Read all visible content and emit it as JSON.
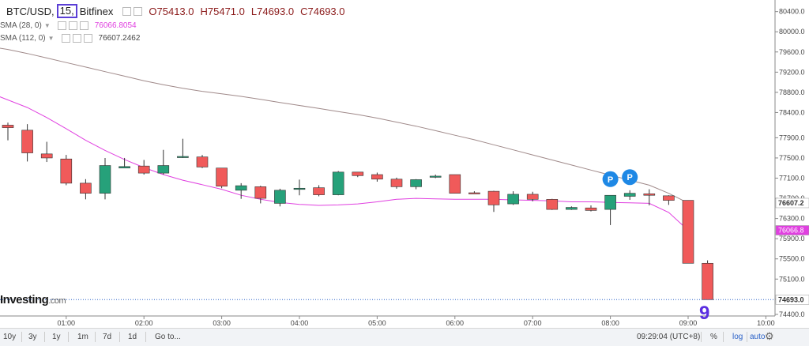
{
  "header": {
    "symbol": "BTC/USD,",
    "interval": "15,",
    "exchange": "Bitfinex",
    "open": "O75413.0",
    "high": "H75471.0",
    "low": "L74693.0",
    "close": "C74693.0"
  },
  "sma": [
    {
      "label": "SMA (28, 0)",
      "value": "76066.8054",
      "color": "#e040e0"
    },
    {
      "label": "SMA (112, 0)",
      "value": "76607.2462",
      "color": "#a08a8a"
    }
  ],
  "logo": {
    "main": "Investing",
    "suffix": ".com"
  },
  "annotation": "9",
  "toolbar": {
    "ranges": [
      "10y",
      "3y",
      "1y",
      "1m",
      "7d",
      "1d"
    ],
    "goto": "Go to...",
    "time": "09:29:04 (UTC+8)",
    "percent": "%",
    "log": "log",
    "auto": "auto"
  },
  "colors": {
    "up": "#26a17a",
    "down": "#f05a5a",
    "sma_short": "#e040e0",
    "sma_long": "#a08a8a",
    "price_line": "#2d63c8",
    "marker": "#1e88e5"
  },
  "chart_data": {
    "type": "candlestick",
    "x_ticks": [
      "01:00",
      "02:00",
      "03:00",
      "04:00",
      "05:00",
      "06:00",
      "07:00",
      "08:00",
      "09:00",
      "10:00"
    ],
    "y_ticks": [
      "80400.0",
      "80000.0",
      "79600.0",
      "79200.0",
      "78800.0",
      "78400.0",
      "77900.0",
      "77500.0",
      "77100.0",
      "76700.0",
      "76300.0",
      "75900.0",
      "75500.0",
      "75100.0",
      "74700.0",
      "74400.0"
    ],
    "ylim": [
      74400,
      80520
    ],
    "candles": [
      {
        "t": "00:00",
        "o": 78150,
        "h": 78200,
        "l": 77850,
        "c": 78100
      },
      {
        "t": "00:15",
        "o": 78050,
        "h": 78170,
        "l": 77430,
        "c": 77600
      },
      {
        "t": "00:30",
        "o": 77580,
        "h": 77820,
        "l": 77420,
        "c": 77500
      },
      {
        "t": "00:45",
        "o": 77480,
        "h": 77560,
        "l": 76960,
        "c": 77000
      },
      {
        "t": "01:00",
        "o": 77000,
        "h": 77080,
        "l": 76680,
        "c": 76800
      },
      {
        "t": "01:15",
        "o": 76800,
        "h": 77500,
        "l": 76680,
        "c": 77350
      },
      {
        "t": "01:30",
        "o": 77300,
        "h": 77500,
        "l": 77300,
        "c": 77330
      },
      {
        "t": "01:45",
        "o": 77340,
        "h": 77460,
        "l": 77170,
        "c": 77200
      },
      {
        "t": "02:00",
        "o": 77200,
        "h": 77660,
        "l": 77170,
        "c": 77350
      },
      {
        "t": "02:15",
        "o": 77520,
        "h": 77880,
        "l": 77500,
        "c": 77530
      },
      {
        "t": "02:30",
        "o": 77520,
        "h": 77560,
        "l": 77300,
        "c": 77320
      },
      {
        "t": "02:45",
        "o": 77300,
        "h": 77300,
        "l": 76900,
        "c": 76940
      },
      {
        "t": "03:00",
        "o": 76860,
        "h": 77000,
        "l": 76690,
        "c": 76950
      },
      {
        "t": "03:15",
        "o": 76930,
        "h": 76950,
        "l": 76600,
        "c": 76700
      },
      {
        "t": "03:30",
        "o": 76600,
        "h": 76890,
        "l": 76540,
        "c": 76860
      },
      {
        "t": "03:45",
        "o": 76880,
        "h": 77070,
        "l": 76760,
        "c": 76900
      },
      {
        "t": "04:00",
        "o": 76910,
        "h": 76960,
        "l": 76740,
        "c": 76770
      },
      {
        "t": "04:15",
        "o": 76770,
        "h": 77240,
        "l": 76760,
        "c": 77220
      },
      {
        "t": "04:30",
        "o": 77220,
        "h": 77220,
        "l": 77120,
        "c": 77150
      },
      {
        "t": "04:45",
        "o": 77170,
        "h": 77210,
        "l": 77030,
        "c": 77080
      },
      {
        "t": "05:00",
        "o": 77080,
        "h": 77110,
        "l": 76890,
        "c": 76930
      },
      {
        "t": "05:15",
        "o": 76930,
        "h": 77080,
        "l": 76880,
        "c": 77070
      },
      {
        "t": "05:30",
        "o": 77120,
        "h": 77170,
        "l": 77100,
        "c": 77140
      },
      {
        "t": "05:45",
        "o": 77170,
        "h": 77170,
        "l": 76800,
        "c": 76800
      },
      {
        "t": "06:00",
        "o": 76810,
        "h": 76840,
        "l": 76790,
        "c": 76800
      },
      {
        "t": "06:15",
        "o": 76840,
        "h": 76850,
        "l": 76430,
        "c": 76570
      },
      {
        "t": "06:30",
        "o": 76590,
        "h": 76840,
        "l": 76570,
        "c": 76780
      },
      {
        "t": "06:45",
        "o": 76780,
        "h": 76830,
        "l": 76640,
        "c": 76680
      },
      {
        "t": "07:00",
        "o": 76680,
        "h": 76690,
        "l": 76470,
        "c": 76480
      },
      {
        "t": "07:15",
        "o": 76480,
        "h": 76540,
        "l": 76470,
        "c": 76520
      },
      {
        "t": "07:30",
        "o": 76510,
        "h": 76560,
        "l": 76440,
        "c": 76460
      },
      {
        "t": "07:45",
        "o": 76480,
        "h": 76740,
        "l": 76170,
        "c": 76760
      },
      {
        "t": "08:00",
        "o": 76740,
        "h": 76860,
        "l": 76670,
        "c": 76800
      },
      {
        "t": "08:15",
        "o": 76790,
        "h": 76880,
        "l": 76560,
        "c": 76760
      },
      {
        "t": "08:30",
        "o": 76750,
        "h": 76760,
        "l": 76570,
        "c": 76660
      },
      {
        "t": "08:45",
        "o": 76660,
        "h": 76660,
        "l": 75410,
        "c": 75413
      },
      {
        "t": "09:00",
        "o": 75413,
        "h": 75471,
        "l": 74693,
        "c": 74693
      }
    ],
    "sma_28": [
      78800,
      78650,
      78500,
      78300,
      78080,
      77850,
      77650,
      77470,
      77310,
      77170,
      77060,
      76970,
      76880,
      76760,
      76680,
      76620,
      76580,
      76560,
      76570,
      76590,
      76630,
      76680,
      76700,
      76690,
      76680,
      76680,
      76680,
      76670,
      76660,
      76650,
      76630,
      76630,
      76620,
      76610,
      76600,
      76420,
      76066.8
    ],
    "sma_112": [
      79710,
      79650,
      79570,
      79480,
      79390,
      79300,
      79210,
      79120,
      79030,
      78950,
      78880,
      78820,
      78770,
      78720,
      78660,
      78600,
      78540,
      78480,
      78420,
      78360,
      78290,
      78210,
      78130,
      78040,
      77950,
      77860,
      77760,
      77660,
      77560,
      77460,
      77360,
      77260,
      77160,
      77060,
      76960,
      76800,
      76607.2
    ],
    "price_labels": [
      {
        "value": 76607.2,
        "text": "76607.2",
        "bg": "#ffffff",
        "fg": "#333333",
        "bold": true
      },
      {
        "value": 76066.8,
        "text": "76066.8",
        "bg": "#e040e0",
        "fg": "#ffffff",
        "bold": false
      },
      {
        "value": 74693.0,
        "text": "74693.0",
        "bg": "#ffffff",
        "fg": "#333333",
        "bold": true
      }
    ],
    "markers": [
      {
        "candle": 31,
        "value": 77080,
        "label": "P"
      },
      {
        "candle": 32,
        "value": 77120,
        "label": "P"
      }
    ]
  }
}
